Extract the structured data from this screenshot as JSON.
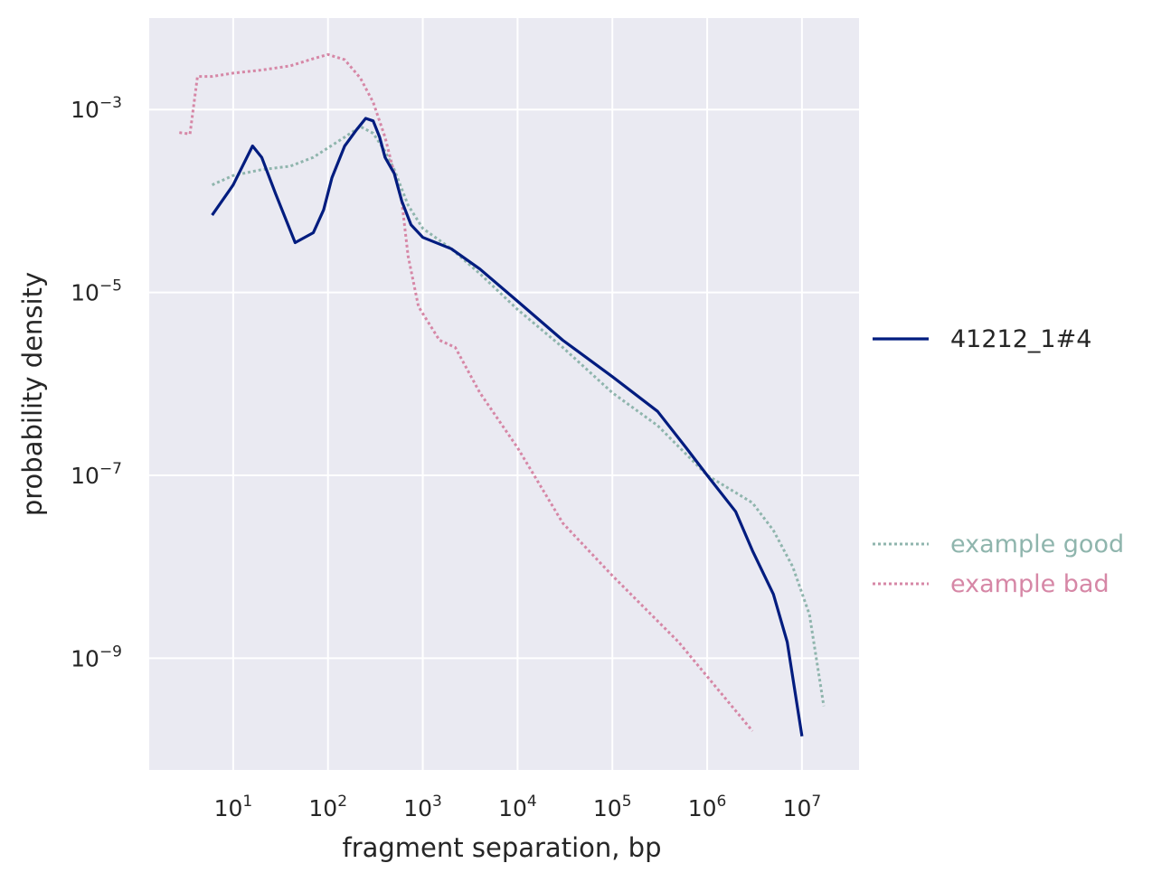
{
  "colors": {
    "plot_bg": "#eaeaf2",
    "grid": "#ffffff",
    "text": "#262626",
    "sample": "#001c7f",
    "good": "#8fb5ad",
    "bad": "#d687a6"
  },
  "chart_data": {
    "type": "line",
    "xscale": "log",
    "yscale": "log",
    "xlabel": "fragment separation, bp",
    "ylabel": "probability density",
    "xlim": [
      1.3,
      40000000
    ],
    "ylim": [
      6e-11,
      0.01
    ],
    "x_ticks": [
      {
        "base": "10",
        "exp": "1"
      },
      {
        "base": "10",
        "exp": "2"
      },
      {
        "base": "10",
        "exp": "3"
      },
      {
        "base": "10",
        "exp": "4"
      },
      {
        "base": "10",
        "exp": "5"
      },
      {
        "base": "10",
        "exp": "6"
      },
      {
        "base": "10",
        "exp": "7"
      }
    ],
    "y_ticks": [
      {
        "base": "10",
        "exp": "−3"
      },
      {
        "base": "10",
        "exp": "−5"
      },
      {
        "base": "10",
        "exp": "−7"
      },
      {
        "base": "10",
        "exp": "−9"
      }
    ],
    "grid": true,
    "legend": [
      {
        "label": "41212_1#4",
        "series": "sample"
      },
      {
        "label": "example good",
        "series": "good"
      },
      {
        "label": "example bad",
        "series": "bad"
      }
    ],
    "series": [
      {
        "key": "sample",
        "name": "41212_1#4",
        "style": "solid",
        "color": "#001c7f",
        "points": [
          [
            6,
            7e-05
          ],
          [
            10,
            0.00015
          ],
          [
            16,
            0.0004
          ],
          [
            20,
            0.0003
          ],
          [
            28,
            0.00012
          ],
          [
            45,
            3.5e-05
          ],
          [
            70,
            4.5e-05
          ],
          [
            90,
            8e-05
          ],
          [
            110,
            0.00018
          ],
          [
            150,
            0.0004
          ],
          [
            200,
            0.0006
          ],
          [
            250,
            0.0008
          ],
          [
            300,
            0.00075
          ],
          [
            350,
            0.0005
          ],
          [
            400,
            0.0003
          ],
          [
            500,
            0.0002
          ],
          [
            600,
            0.0001
          ],
          [
            750,
            5.5e-05
          ],
          [
            1000,
            4e-05
          ],
          [
            2000,
            3e-05
          ],
          [
            4000,
            1.8e-05
          ],
          [
            10000,
            8e-06
          ],
          [
            30000,
            3e-06
          ],
          [
            100000,
            1.2e-06
          ],
          [
            300000,
            5e-07
          ],
          [
            600000,
            2e-07
          ],
          [
            1000000,
            1e-07
          ],
          [
            2000000,
            4e-08
          ],
          [
            3000000,
            1.5e-08
          ],
          [
            5000000,
            5e-09
          ],
          [
            7000000,
            1.5e-09
          ],
          [
            10000000,
            1.4e-10
          ]
        ]
      },
      {
        "key": "good",
        "name": "example good",
        "style": "dotted",
        "color": "#8fb5ad",
        "points": [
          [
            6,
            0.00015
          ],
          [
            10,
            0.00019
          ],
          [
            20,
            0.00022
          ],
          [
            40,
            0.00024
          ],
          [
            70,
            0.0003
          ],
          [
            100,
            0.00038
          ],
          [
            150,
            0.0005
          ],
          [
            220,
            0.00065
          ],
          [
            300,
            0.00055
          ],
          [
            400,
            0.00035
          ],
          [
            500,
            0.00022
          ],
          [
            700,
            9e-05
          ],
          [
            1000,
            5e-05
          ],
          [
            2000,
            3e-05
          ],
          [
            4000,
            1.6e-05
          ],
          [
            10000,
            6.5e-06
          ],
          [
            30000,
            2.5e-06
          ],
          [
            100000,
            8e-07
          ],
          [
            300000,
            3.5e-07
          ],
          [
            1000000,
            1e-07
          ],
          [
            3000000,
            5e-08
          ],
          [
            5000000,
            2.5e-08
          ],
          [
            8000000,
            1e-08
          ],
          [
            12000000,
            3e-09
          ],
          [
            17000000,
            3e-10
          ]
        ]
      },
      {
        "key": "bad",
        "name": "example bad",
        "style": "dotted",
        "color": "#d687a6",
        "points": [
          [
            2.7,
            0.00056
          ],
          [
            3.5,
            0.00054
          ],
          [
            4.2,
            0.0023
          ],
          [
            6,
            0.0023
          ],
          [
            10,
            0.0025
          ],
          [
            20,
            0.0027
          ],
          [
            40,
            0.003
          ],
          [
            70,
            0.0036
          ],
          [
            100,
            0.004
          ],
          [
            150,
            0.0035
          ],
          [
            220,
            0.0022
          ],
          [
            300,
            0.0012
          ],
          [
            400,
            0.0005
          ],
          [
            500,
            0.0002
          ],
          [
            600,
            0.0001
          ],
          [
            700,
            2.5e-05
          ],
          [
            900,
            7e-06
          ],
          [
            1500,
            3e-06
          ],
          [
            2200,
            2.5e-06
          ],
          [
            4000,
            8e-07
          ],
          [
            10000,
            2e-07
          ],
          [
            30000,
            3e-08
          ],
          [
            100000,
            8e-09
          ],
          [
            500000,
            1.5e-09
          ],
          [
            3000000,
            1.6e-10
          ]
        ]
      }
    ]
  }
}
